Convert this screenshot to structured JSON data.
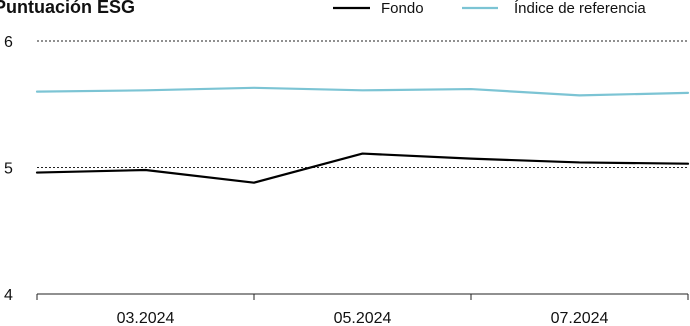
{
  "colors": {
    "fondo": "#000000",
    "indice": "#7cc4d4",
    "grid": "#222222"
  },
  "chart_data": {
    "type": "line",
    "title": "Puntuación ESG",
    "xlabel": "",
    "ylabel": "",
    "x_tick_labels": [
      "03.2024",
      "05.2024",
      "07.2024"
    ],
    "y_ticks": [
      "4",
      "5",
      "6"
    ],
    "ylim": [
      4,
      6
    ],
    "grid": true,
    "legend_position": "top-right",
    "x": [
      0,
      1,
      2,
      3,
      4,
      5,
      6
    ],
    "series": [
      {
        "name": "Fondo",
        "color": "#000000",
        "values": [
          4.96,
          4.98,
          4.88,
          5.11,
          5.07,
          5.04,
          5.03
        ]
      },
      {
        "name": "Índice de referencia",
        "color": "#7cc4d4",
        "values": [
          5.6,
          5.61,
          5.63,
          5.61,
          5.62,
          5.57,
          5.59
        ]
      }
    ]
  }
}
